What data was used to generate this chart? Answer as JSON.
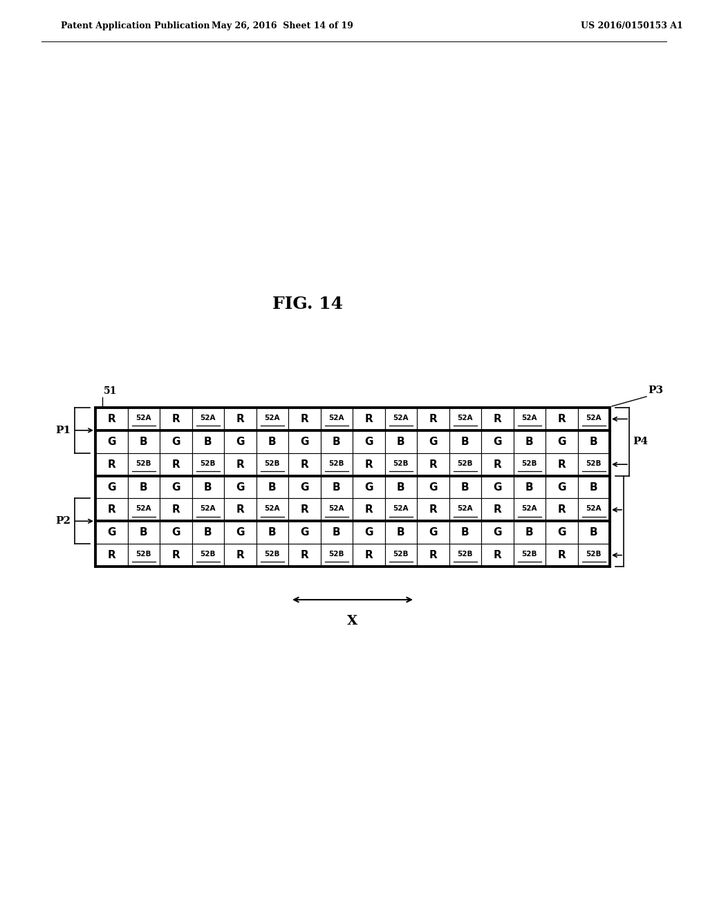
{
  "title": "FIG. 14",
  "patent_header_left": "Patent Application Publication",
  "patent_header_mid": "May 26, 2016  Sheet 14 of 19",
  "patent_header_right": "US 2016/0150153 A1",
  "grid_cols": 16,
  "grid_rows": 7,
  "bg_color": "#ffffff",
  "row_patterns": [
    [
      "R",
      "52A",
      "R",
      "52A",
      "R",
      "52A",
      "R",
      "52A",
      "R",
      "52A",
      "R",
      "52A",
      "R",
      "52A",
      "R",
      "52A"
    ],
    [
      "G",
      "B",
      "G",
      "B",
      "G",
      "B",
      "G",
      "B",
      "G",
      "B",
      "G",
      "B",
      "G",
      "B",
      "G",
      "B"
    ],
    [
      "R",
      "52B",
      "R",
      "52B",
      "R",
      "52B",
      "R",
      "52B",
      "R",
      "52B",
      "R",
      "52B",
      "R",
      "52B",
      "R",
      "52B"
    ],
    [
      "G",
      "B",
      "G",
      "B",
      "G",
      "B",
      "G",
      "B",
      "G",
      "B",
      "G",
      "B",
      "G",
      "B",
      "G",
      "B"
    ],
    [
      "R",
      "52A",
      "R",
      "52A",
      "R",
      "52A",
      "R",
      "52A",
      "R",
      "52A",
      "R",
      "52A",
      "R",
      "52A",
      "R",
      "52A"
    ],
    [
      "G",
      "B",
      "G",
      "B",
      "G",
      "B",
      "G",
      "B",
      "G",
      "B",
      "G",
      "B",
      "G",
      "B",
      "G",
      "B"
    ],
    [
      "R",
      "52B",
      "R",
      "52B",
      "R",
      "52B",
      "R",
      "52B",
      "R",
      "52B",
      "R",
      "52B",
      "R",
      "52B",
      "R",
      "52B"
    ]
  ],
  "underline_labels": [
    "52A",
    "52B"
  ],
  "label_51": "51",
  "label_P1": "P1",
  "label_P2": "P2",
  "label_P3": "P3",
  "label_P4": "P4",
  "label_X": "X",
  "thick_row_borders_after": [
    0,
    2,
    4
  ],
  "header_fontsize": 9,
  "title_fontsize": 18,
  "cell_label_fontsize_large": 11,
  "cell_label_fontsize_small": 7.5,
  "annotation_fontsize": 11
}
